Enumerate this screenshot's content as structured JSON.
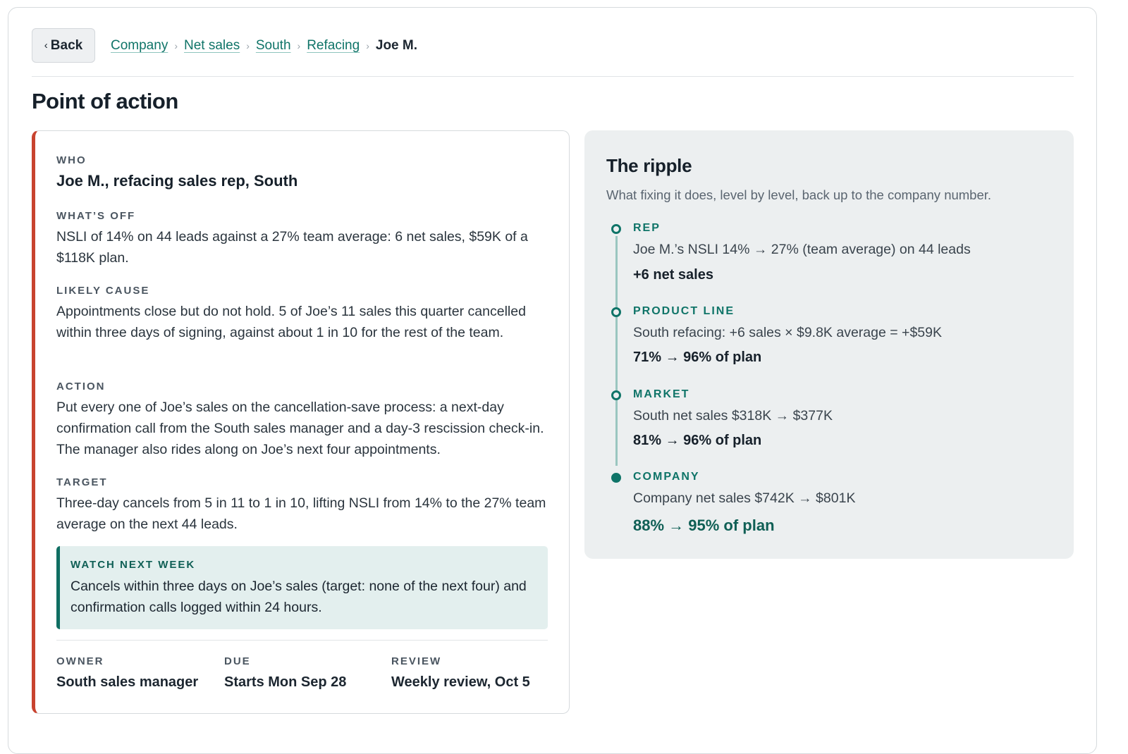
{
  "nav": {
    "back_label": "Back",
    "breadcrumbs": [
      "Company",
      "Net sales",
      "South",
      "Refacing"
    ],
    "current": "Joe M."
  },
  "page_title": "Point of action",
  "action_card": {
    "accent_color": "#c8432f",
    "who_label": "WHO",
    "who_value": "Joe M., refacing sales rep, South",
    "whats_off_label": "WHAT’S OFF",
    "whats_off_text": "NSLI of 14% on 44 leads against a 27% team average: 6 net sales, $59K of a $118K plan.",
    "likely_cause_label": "LIKELY CAUSE",
    "likely_cause_text": "Appointments close but do not hold. 5 of Joe’s 11 sales this quarter cancelled within three days of signing, against about 1 in 10 for the rest of the team.",
    "action_label": "ACTION",
    "action_text": "Put every one of Joe’s sales on the cancellation-save process: a next-day confirmation call from the South sales manager and a day-3 rescission check-in. The manager also rides along on Joe’s next four appointments.",
    "target_label": "TARGET",
    "target_text": "Three-day cancels from 5 in 11 to 1 in 10, lifting NSLI from 14% to the 27% team average on the next 44 leads.",
    "watch_label": "WATCH NEXT WEEK",
    "watch_text": "Cancels within three days on Joe’s sales (target: none of the next four) and confirmation calls logged within 24 hours.",
    "owner_label": "OWNER",
    "owner_value": "South sales manager",
    "due_label": "DUE",
    "due_value": "Starts Mon Sep 28",
    "review_label": "REVIEW",
    "review_value": "Weekly review, Oct 5"
  },
  "ripple": {
    "title": "The ripple",
    "subtitle": "What fixing it does, level by level, back up to the company number.",
    "accent_color": "#0f7468",
    "levels": [
      {
        "label": "REP",
        "desc": "Joe M.’s NSLI 14% → 27% (team average) on 44 leads",
        "result": "+6 net sales"
      },
      {
        "label": "PRODUCT LINE",
        "desc": "South refacing: +6 sales × $9.8K average = +$59K",
        "result": "71% → 96% of plan"
      },
      {
        "label": "MARKET",
        "desc": "South net sales $318K → $377K",
        "result": "81% → 96% of plan"
      },
      {
        "label": "COMPANY",
        "desc": "Company net sales $742K → $801K",
        "result": "88% → 95% of plan"
      }
    ]
  }
}
